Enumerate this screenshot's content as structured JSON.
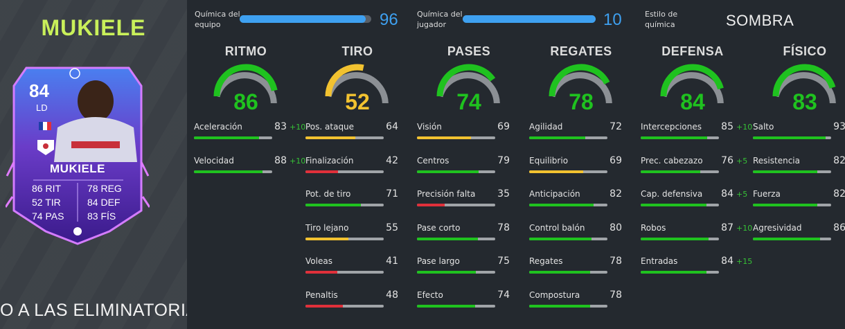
{
  "player": {
    "title": "MUKIELE",
    "card": {
      "rating": "84",
      "position": "LD",
      "name": "MUKIELE",
      "stats_left": [
        "86 RIT",
        "52 TIR",
        "74 PAS"
      ],
      "stats_right": [
        "78 REG",
        "84 DEF",
        "83 FÍS"
      ]
    },
    "ticker": "O A LAS ELIMINATORIAS DE"
  },
  "chemistry": {
    "team": {
      "label_line1": "Química del",
      "label_line2": "equipo",
      "value": "96",
      "fill": 0.96
    },
    "player": {
      "label_line1": "Química del",
      "label_line2": "jugador",
      "value": "10",
      "fill": 1.0
    },
    "style": {
      "label_line1": "Estilo de",
      "label_line2": "química",
      "value": "SOMBRA"
    }
  },
  "colors": {
    "green": "#1fc21f",
    "yellow": "#f2c230",
    "red": "#e0303a",
    "blue": "#3ea0f0",
    "accent_title": "#c9f05a"
  },
  "categories": [
    {
      "name": "RITMO",
      "value": "86",
      "level": "green",
      "stats": [
        {
          "name": "Aceleración",
          "value": "83",
          "bonus": "+10"
        },
        {
          "name": "Velocidad",
          "value": "88",
          "bonus": "+10"
        }
      ]
    },
    {
      "name": "TIRO",
      "value": "52",
      "level": "yellow",
      "stats": [
        {
          "name": "Pos. ataque",
          "value": "64",
          "bonus": ""
        },
        {
          "name": "Finalización",
          "value": "42",
          "bonus": ""
        },
        {
          "name": "Pot. de tiro",
          "value": "71",
          "bonus": ""
        },
        {
          "name": "Tiro lejano",
          "value": "55",
          "bonus": ""
        },
        {
          "name": "Voleas",
          "value": "41",
          "bonus": ""
        },
        {
          "name": "Penaltis",
          "value": "48",
          "bonus": ""
        }
      ]
    },
    {
      "name": "PASES",
      "value": "74",
      "level": "green",
      "stats": [
        {
          "name": "Visión",
          "value": "69",
          "bonus": ""
        },
        {
          "name": "Centros",
          "value": "79",
          "bonus": ""
        },
        {
          "name": "Precisión falta",
          "value": "35",
          "bonus": ""
        },
        {
          "name": "Pase corto",
          "value": "78",
          "bonus": ""
        },
        {
          "name": "Pase largo",
          "value": "75",
          "bonus": ""
        },
        {
          "name": "Efecto",
          "value": "74",
          "bonus": ""
        }
      ]
    },
    {
      "name": "REGATES",
      "value": "78",
      "level": "green",
      "stats": [
        {
          "name": "Agilidad",
          "value": "72",
          "bonus": ""
        },
        {
          "name": "Equilibrio",
          "value": "69",
          "bonus": ""
        },
        {
          "name": "Anticipación",
          "value": "82",
          "bonus": ""
        },
        {
          "name": "Control balón",
          "value": "80",
          "bonus": ""
        },
        {
          "name": "Regates",
          "value": "78",
          "bonus": ""
        },
        {
          "name": "Compostura",
          "value": "78",
          "bonus": ""
        }
      ]
    },
    {
      "name": "DEFENSA",
      "value": "84",
      "level": "green",
      "stats": [
        {
          "name": "Intercepciones",
          "value": "85",
          "bonus": "+10"
        },
        {
          "name": "Prec. cabezazo",
          "value": "76",
          "bonus": "+5"
        },
        {
          "name": "Cap. defensiva",
          "value": "84",
          "bonus": "+5"
        },
        {
          "name": "Robos",
          "value": "87",
          "bonus": "+10"
        },
        {
          "name": "Entradas",
          "value": "84",
          "bonus": "+15"
        }
      ]
    },
    {
      "name": "FÍSICO",
      "value": "83",
      "level": "green",
      "stats": [
        {
          "name": "Salto",
          "value": "93",
          "bonus": ""
        },
        {
          "name": "Resistencia",
          "value": "82",
          "bonus": ""
        },
        {
          "name": "Fuerza",
          "value": "82",
          "bonus": ""
        },
        {
          "name": "Agresividad",
          "value": "86",
          "bonus": ""
        }
      ]
    }
  ]
}
